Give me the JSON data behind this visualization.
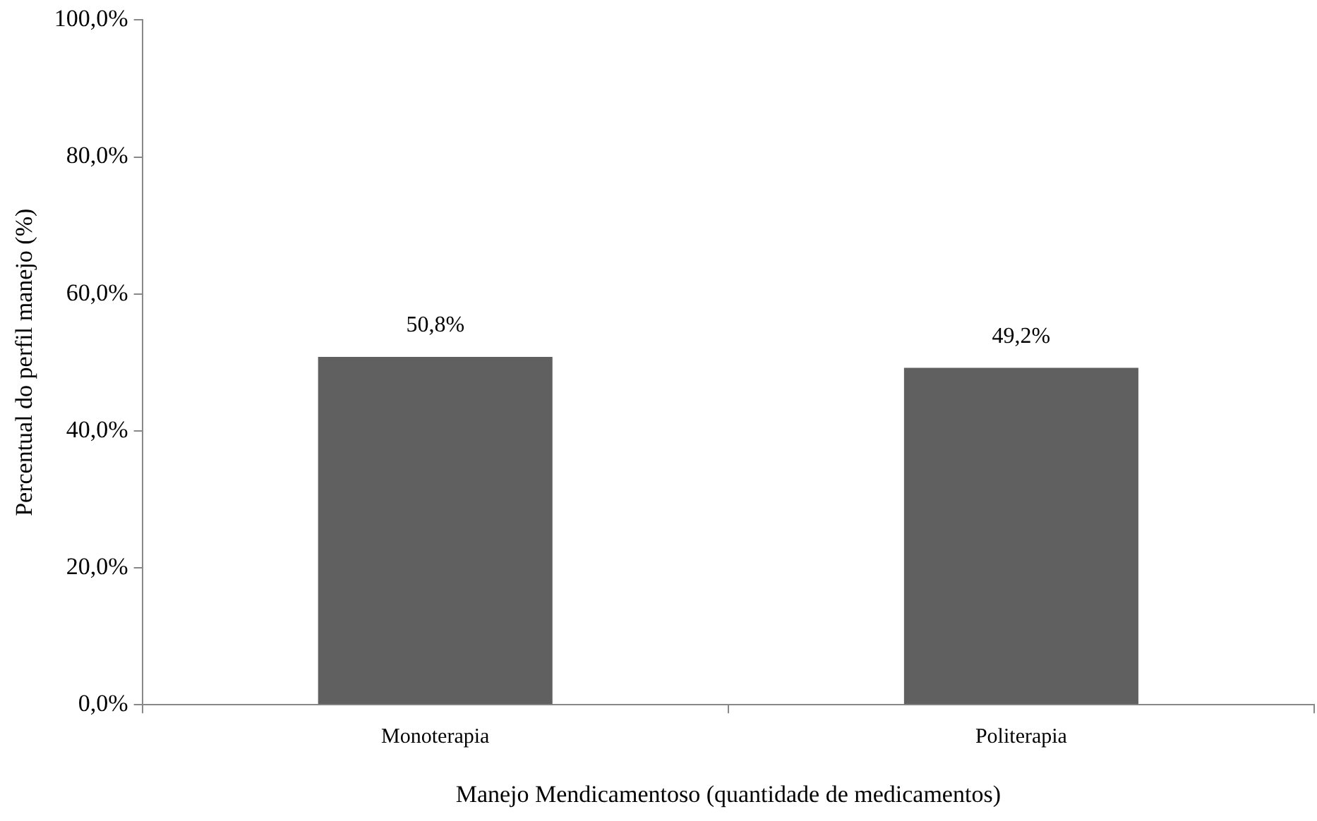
{
  "chart_data": {
    "type": "bar",
    "xlabel": "Manejo Mendicamentoso (quantidade de medicamentos)",
    "ylabel": "Percentual do perfil manejo (%)",
    "categories": [
      "Monoterapia",
      "Politerapia"
    ],
    "values": [
      50.8,
      49.2
    ],
    "color": "#606060",
    "value_labels": [
      "50,8%",
      "49,2%"
    ],
    "ylim": [
      0,
      100
    ],
    "yticks": [
      {
        "value": 0,
        "label": "0,0%"
      },
      {
        "value": 20,
        "label": "20,0%"
      },
      {
        "value": 40,
        "label": "40,0%"
      },
      {
        "value": 60,
        "label": "60,0%"
      },
      {
        "value": 80,
        "label": "80,0%"
      },
      {
        "value": 100,
        "label": "100,0%"
      }
    ],
    "grid": false,
    "legend": false
  }
}
